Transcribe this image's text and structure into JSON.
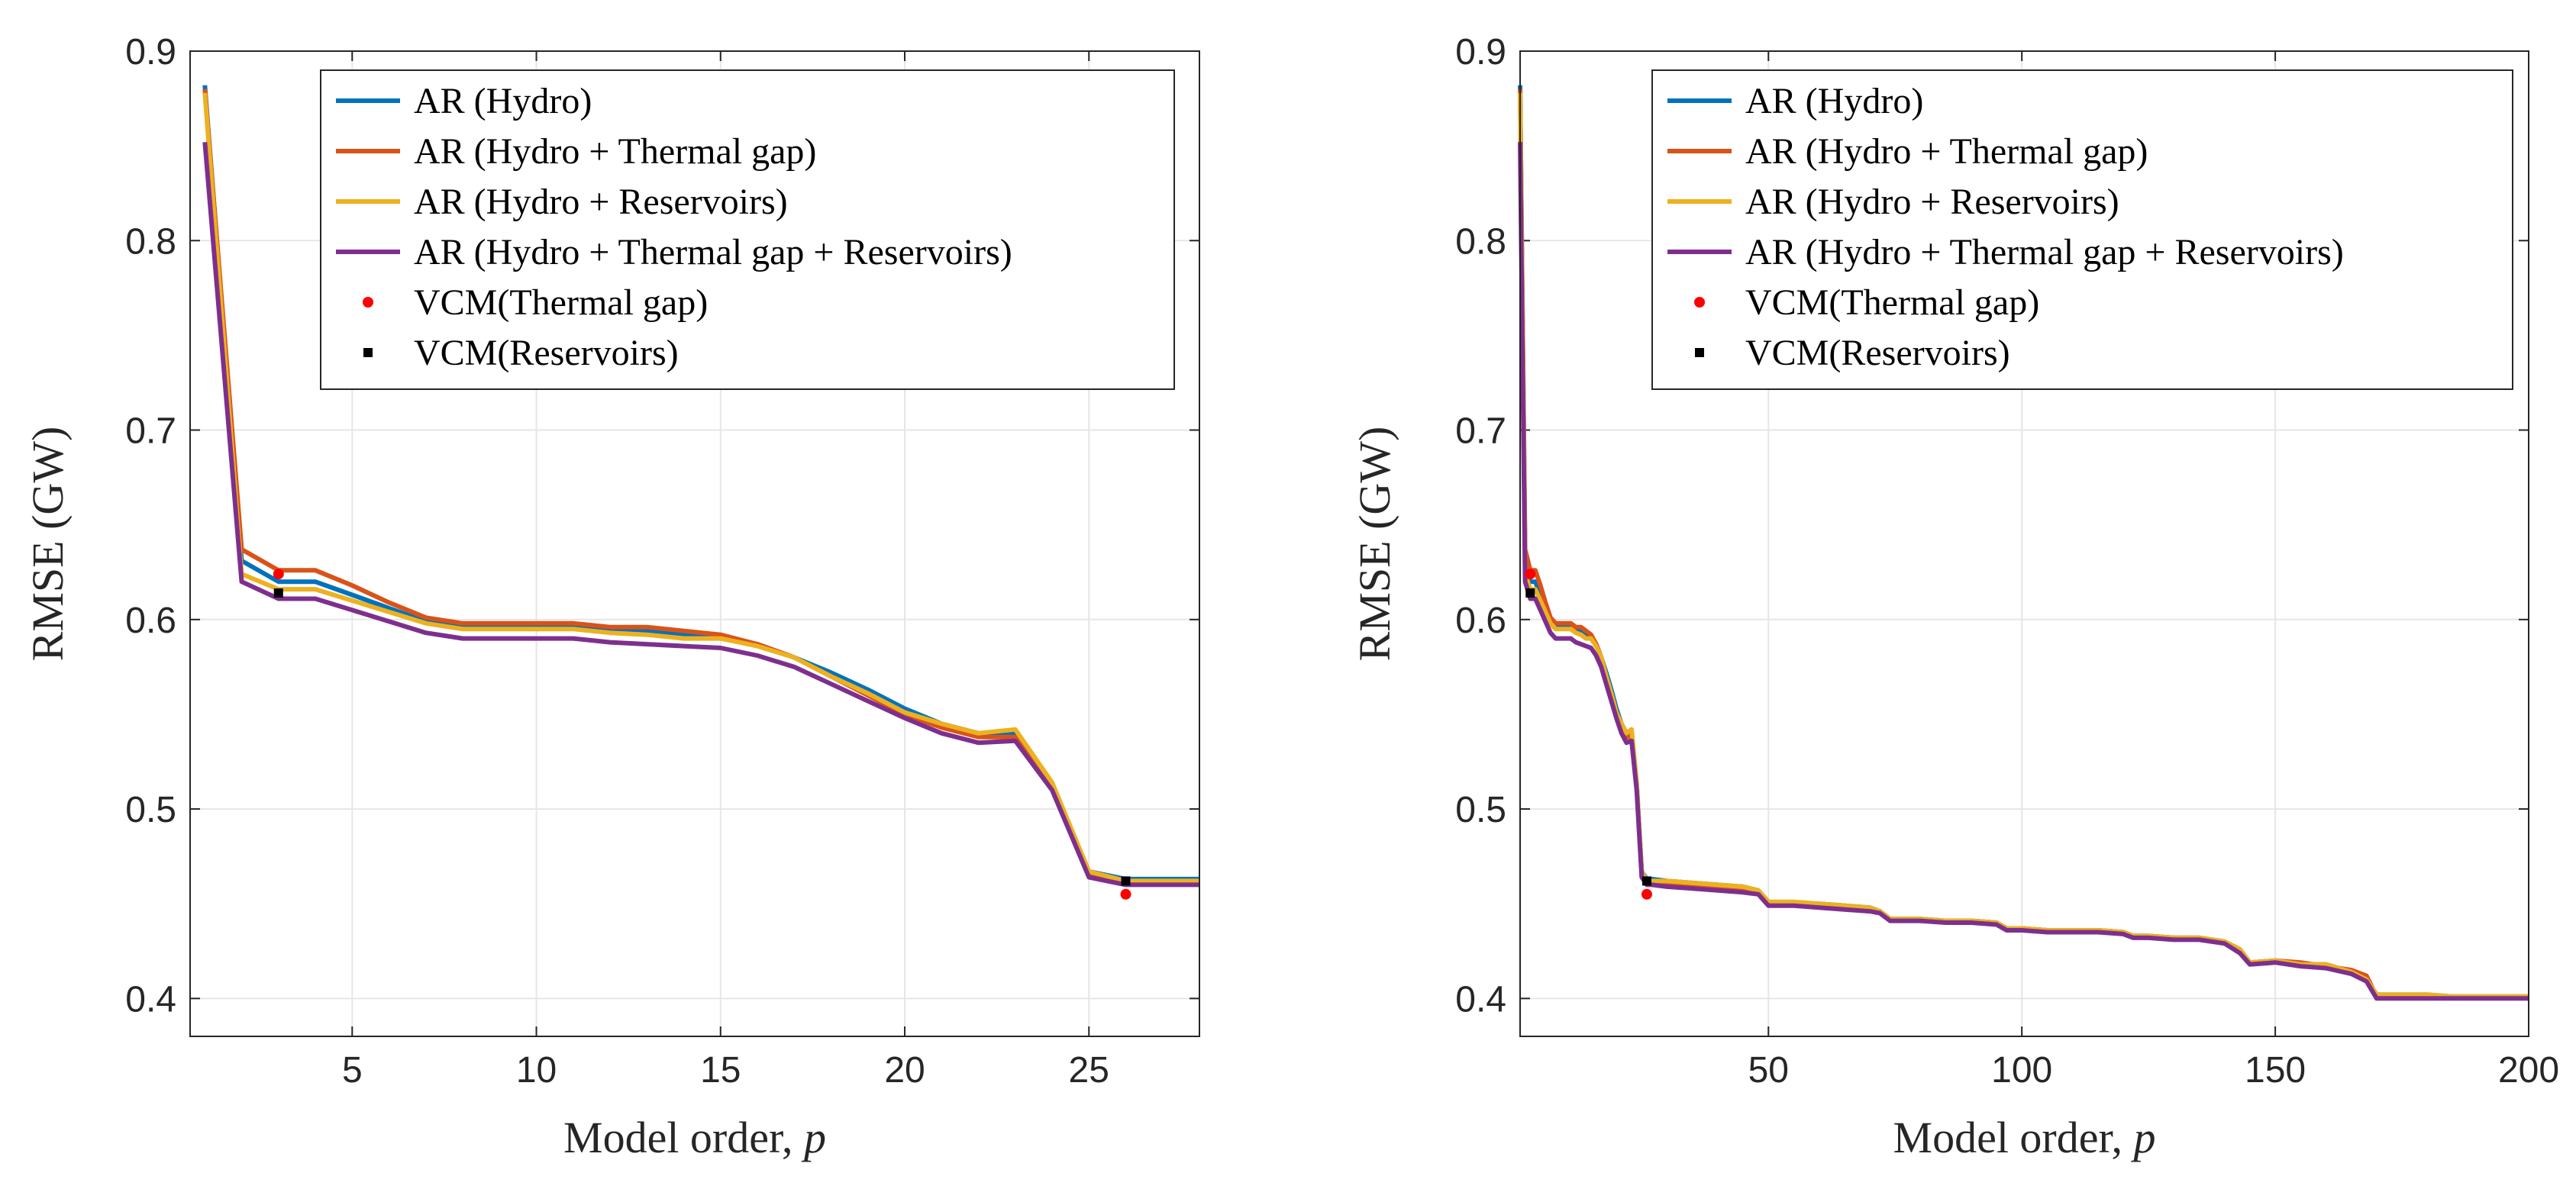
{
  "chart_data": [
    {
      "type": "line",
      "xlabel": "Model order,",
      "xlabel_var": "p",
      "ylabel": "RMSE (GW)",
      "xlim": [
        0.6,
        28
      ],
      "ylim": [
        0.38,
        0.9
      ],
      "x_ticks": [
        5,
        10,
        15,
        20,
        25
      ],
      "x_tick_labels": [
        "5",
        "10",
        "15",
        "20",
        "25"
      ],
      "y_ticks": [
        0.4,
        0.5,
        0.6,
        0.7,
        0.8,
        0.9
      ],
      "y_tick_labels": [
        "0.4",
        "0.5",
        "0.6",
        "0.7",
        "0.8",
        "0.9"
      ],
      "grid": true,
      "legend_position": "top-right",
      "series": [
        {
          "name": "AR (Hydro)",
          "color": "#0072BD",
          "x": [
            1,
            2,
            3,
            4,
            5,
            6,
            7,
            8,
            9,
            10,
            11,
            12,
            13,
            14,
            15,
            16,
            17,
            18,
            19,
            20,
            21,
            22,
            23,
            24,
            25,
            26,
            27,
            28
          ],
          "y": [
            0.882,
            0.631,
            0.62,
            0.62,
            0.613,
            0.606,
            0.599,
            0.597,
            0.597,
            0.597,
            0.597,
            0.595,
            0.594,
            0.592,
            0.591,
            0.587,
            0.58,
            0.572,
            0.563,
            0.553,
            0.545,
            0.54,
            0.54,
            0.513,
            0.467,
            0.463,
            0.463,
            0.463
          ]
        },
        {
          "name": "AR (Hydro + Thermal gap)",
          "color": "#D95319",
          "x": [
            1,
            2,
            3,
            4,
            5,
            6,
            7,
            8,
            9,
            10,
            11,
            12,
            13,
            14,
            15,
            16,
            17,
            18,
            19,
            20,
            21,
            22,
            23,
            24,
            25,
            26,
            27,
            28
          ],
          "y": [
            0.88,
            0.637,
            0.626,
            0.626,
            0.618,
            0.609,
            0.601,
            0.598,
            0.598,
            0.598,
            0.598,
            0.596,
            0.596,
            0.594,
            0.592,
            0.587,
            0.58,
            0.57,
            0.56,
            0.55,
            0.543,
            0.538,
            0.538,
            0.512,
            0.466,
            0.461,
            0.461,
            0.461
          ]
        },
        {
          "name": "AR (Hydro + Reservoirs)",
          "color": "#EDB120",
          "x": [
            1,
            2,
            3,
            4,
            5,
            6,
            7,
            8,
            9,
            10,
            11,
            12,
            13,
            14,
            15,
            16,
            17,
            18,
            19,
            20,
            21,
            22,
            23,
            24,
            25,
            26,
            27,
            28
          ],
          "y": [
            0.878,
            0.624,
            0.616,
            0.616,
            0.61,
            0.604,
            0.598,
            0.595,
            0.595,
            0.595,
            0.595,
            0.593,
            0.592,
            0.59,
            0.59,
            0.586,
            0.58,
            0.57,
            0.561,
            0.551,
            0.545,
            0.54,
            0.542,
            0.514,
            0.467,
            0.462,
            0.462,
            0.462
          ]
        },
        {
          "name": "AR (Hydro + Thermal gap + Reservoirs)",
          "color": "#7E2F8E",
          "x": [
            1,
            2,
            3,
            4,
            5,
            6,
            7,
            8,
            9,
            10,
            11,
            12,
            13,
            14,
            15,
            16,
            17,
            18,
            19,
            20,
            21,
            22,
            23,
            24,
            25,
            26,
            27,
            28
          ],
          "y": [
            0.852,
            0.62,
            0.611,
            0.611,
            0.605,
            0.599,
            0.593,
            0.59,
            0.59,
            0.59,
            0.59,
            0.588,
            0.587,
            0.586,
            0.585,
            0.581,
            0.575,
            0.566,
            0.557,
            0.548,
            0.54,
            0.535,
            0.536,
            0.51,
            0.464,
            0.46,
            0.46,
            0.46
          ]
        }
      ],
      "markers": [
        {
          "name": "VCM(Thermal gap)",
          "shape": "dot",
          "color": "#FF0000",
          "points": [
            [
              3,
              0.624
            ],
            [
              26,
              0.455
            ]
          ]
        },
        {
          "name": "VCM(Reservoirs)",
          "shape": "square",
          "color": "#000000",
          "points": [
            [
              3,
              0.614
            ],
            [
              26,
              0.462
            ]
          ]
        }
      ]
    },
    {
      "type": "line",
      "xlabel": "Model order,",
      "xlabel_var": "p",
      "ylabel": "RMSE (GW)",
      "xlim": [
        1,
        200
      ],
      "ylim": [
        0.38,
        0.9
      ],
      "x_ticks": [
        50,
        100,
        150,
        200
      ],
      "x_tick_labels": [
        "50",
        "100",
        "150",
        "200"
      ],
      "y_ticks": [
        0.4,
        0.5,
        0.6,
        0.7,
        0.8,
        0.9
      ],
      "y_tick_labels": [
        "0.4",
        "0.5",
        "0.6",
        "0.7",
        "0.8",
        "0.9"
      ],
      "grid": true,
      "legend_position": "top-right",
      "series": [
        {
          "name": "AR (Hydro)",
          "color": "#0072BD",
          "x": [
            1,
            2,
            3,
            4,
            5,
            6,
            7,
            8,
            9,
            10,
            11,
            12,
            13,
            14,
            15,
            16,
            17,
            18,
            19,
            20,
            21,
            22,
            23,
            24,
            25,
            26,
            27,
            30,
            35,
            40,
            45,
            48,
            50,
            55,
            60,
            65,
            70,
            72,
            74,
            80,
            85,
            90,
            95,
            97,
            100,
            105,
            110,
            115,
            120,
            122,
            125,
            130,
            135,
            140,
            143,
            145,
            150,
            155,
            160,
            165,
            168,
            170,
            175,
            180,
            185,
            190,
            195,
            200
          ],
          "y": [
            0.882,
            0.631,
            0.62,
            0.62,
            0.613,
            0.606,
            0.599,
            0.597,
            0.597,
            0.597,
            0.597,
            0.595,
            0.594,
            0.592,
            0.591,
            0.587,
            0.58,
            0.572,
            0.563,
            0.553,
            0.545,
            0.54,
            0.54,
            0.513,
            0.467,
            0.463,
            0.463,
            0.462,
            0.461,
            0.46,
            0.459,
            0.457,
            0.451,
            0.45,
            0.45,
            0.449,
            0.448,
            0.446,
            0.442,
            0.442,
            0.441,
            0.441,
            0.44,
            0.437,
            0.437,
            0.436,
            0.436,
            0.436,
            0.435,
            0.433,
            0.433,
            0.432,
            0.432,
            0.43,
            0.426,
            0.419,
            0.42,
            0.418,
            0.418,
            0.414,
            0.41,
            0.402,
            0.402,
            0.402,
            0.401,
            0.401,
            0.401,
            0.401
          ]
        },
        {
          "name": "AR (Hydro + Thermal gap)",
          "color": "#D95319",
          "x": [
            1,
            2,
            3,
            4,
            5,
            6,
            7,
            8,
            9,
            10,
            11,
            12,
            13,
            14,
            15,
            16,
            17,
            18,
            19,
            20,
            21,
            22,
            23,
            24,
            25,
            26,
            27,
            30,
            35,
            40,
            45,
            48,
            50,
            55,
            60,
            65,
            70,
            72,
            74,
            80,
            85,
            90,
            95,
            97,
            100,
            105,
            110,
            115,
            120,
            122,
            125,
            130,
            135,
            140,
            143,
            145,
            150,
            155,
            160,
            165,
            168,
            170,
            175,
            180,
            185,
            190,
            195,
            200
          ],
          "y": [
            0.88,
            0.637,
            0.626,
            0.626,
            0.618,
            0.609,
            0.601,
            0.598,
            0.598,
            0.598,
            0.598,
            0.596,
            0.596,
            0.594,
            0.592,
            0.587,
            0.58,
            0.57,
            0.56,
            0.55,
            0.543,
            0.538,
            0.538,
            0.512,
            0.466,
            0.461,
            0.461,
            0.461,
            0.46,
            0.459,
            0.458,
            0.456,
            0.45,
            0.45,
            0.449,
            0.449,
            0.447,
            0.446,
            0.442,
            0.441,
            0.441,
            0.441,
            0.44,
            0.437,
            0.437,
            0.436,
            0.436,
            0.436,
            0.435,
            0.433,
            0.433,
            0.432,
            0.432,
            0.43,
            0.425,
            0.419,
            0.42,
            0.419,
            0.417,
            0.415,
            0.412,
            0.401,
            0.401,
            0.401,
            0.401,
            0.401,
            0.401,
            0.401
          ]
        },
        {
          "name": "AR (Hydro + Reservoirs)",
          "color": "#EDB120",
          "x": [
            1,
            2,
            3,
            4,
            5,
            6,
            7,
            8,
            9,
            10,
            11,
            12,
            13,
            14,
            15,
            16,
            17,
            18,
            19,
            20,
            21,
            22,
            23,
            24,
            25,
            26,
            27,
            30,
            35,
            40,
            45,
            48,
            50,
            55,
            60,
            65,
            70,
            72,
            74,
            80,
            85,
            90,
            95,
            97,
            100,
            105,
            110,
            115,
            120,
            122,
            125,
            130,
            135,
            140,
            143,
            145,
            150,
            155,
            160,
            165,
            168,
            170,
            175,
            180,
            185,
            190,
            195,
            200
          ],
          "y": [
            0.878,
            0.624,
            0.616,
            0.616,
            0.61,
            0.604,
            0.598,
            0.595,
            0.595,
            0.595,
            0.595,
            0.593,
            0.592,
            0.59,
            0.59,
            0.586,
            0.58,
            0.57,
            0.561,
            0.551,
            0.545,
            0.54,
            0.542,
            0.514,
            0.467,
            0.462,
            0.462,
            0.462,
            0.461,
            0.46,
            0.459,
            0.457,
            0.451,
            0.451,
            0.45,
            0.449,
            0.448,
            0.446,
            0.442,
            0.442,
            0.441,
            0.441,
            0.44,
            0.437,
            0.437,
            0.436,
            0.436,
            0.436,
            0.435,
            0.433,
            0.433,
            0.432,
            0.432,
            0.43,
            0.426,
            0.419,
            0.42,
            0.418,
            0.418,
            0.414,
            0.41,
            0.402,
            0.402,
            0.402,
            0.401,
            0.401,
            0.401,
            0.401
          ]
        },
        {
          "name": "AR (Hydro + Thermal gap + Reservoirs)",
          "color": "#7E2F8E",
          "x": [
            1,
            2,
            3,
            4,
            5,
            6,
            7,
            8,
            9,
            10,
            11,
            12,
            13,
            14,
            15,
            16,
            17,
            18,
            19,
            20,
            21,
            22,
            23,
            24,
            25,
            26,
            27,
            30,
            35,
            40,
            45,
            48,
            50,
            55,
            60,
            65,
            70,
            72,
            74,
            80,
            85,
            90,
            95,
            97,
            100,
            105,
            110,
            115,
            120,
            122,
            125,
            130,
            135,
            140,
            143,
            145,
            150,
            155,
            160,
            165,
            168,
            170,
            175,
            180,
            185,
            190,
            195,
            200
          ],
          "y": [
            0.852,
            0.62,
            0.611,
            0.611,
            0.605,
            0.599,
            0.593,
            0.59,
            0.59,
            0.59,
            0.59,
            0.588,
            0.587,
            0.586,
            0.585,
            0.581,
            0.575,
            0.566,
            0.557,
            0.548,
            0.54,
            0.535,
            0.536,
            0.51,
            0.464,
            0.46,
            0.46,
            0.459,
            0.458,
            0.457,
            0.456,
            0.455,
            0.449,
            0.449,
            0.448,
            0.447,
            0.446,
            0.445,
            0.441,
            0.441,
            0.44,
            0.44,
            0.439,
            0.436,
            0.436,
            0.435,
            0.435,
            0.435,
            0.434,
            0.432,
            0.432,
            0.431,
            0.431,
            0.429,
            0.424,
            0.418,
            0.419,
            0.417,
            0.416,
            0.413,
            0.409,
            0.4,
            0.4,
            0.4,
            0.4,
            0.4,
            0.4,
            0.4
          ]
        }
      ],
      "markers": [
        {
          "name": "VCM(Thermal gap)",
          "shape": "dot",
          "color": "#FF0000",
          "points": [
            [
              3,
              0.624
            ],
            [
              26,
              0.455
            ]
          ]
        },
        {
          "name": "VCM(Reservoirs)",
          "shape": "square",
          "color": "#000000",
          "points": [
            [
              3,
              0.614
            ],
            [
              26,
              0.462
            ]
          ]
        }
      ]
    }
  ]
}
